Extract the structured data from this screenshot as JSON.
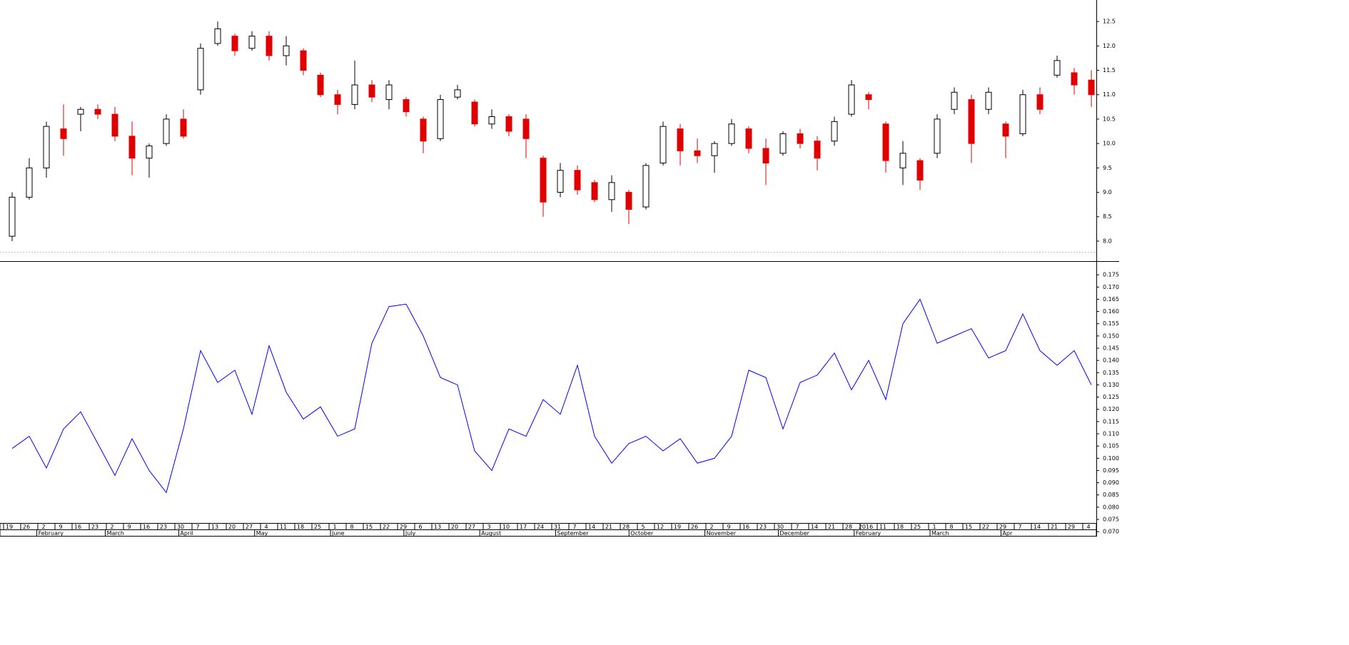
{
  "chart_data": [
    {
      "type": "candlestick",
      "x": [
        "19",
        "26",
        "2",
        "9",
        "16",
        "23",
        "2",
        "9",
        "16",
        "23",
        "30",
        "7",
        "13",
        "20",
        "27",
        "4",
        "11",
        "18",
        "25",
        "1",
        "8",
        "15",
        "22",
        "29",
        "6",
        "13",
        "20",
        "27",
        "3",
        "10",
        "17",
        "24",
        "31",
        "7",
        "14",
        "21",
        "28",
        "5",
        "12",
        "19",
        "26",
        "2",
        "9",
        "16",
        "23",
        "30",
        "7",
        "14",
        "21",
        "28",
        "2016",
        "11",
        "18",
        "25",
        "1",
        "8",
        "15",
        "22",
        "29",
        "7",
        "14",
        "21",
        "29",
        "4"
      ],
      "months": [
        "February",
        "March",
        "April",
        "May",
        "June",
        "July",
        "August",
        "September",
        "October",
        "November",
        "December",
        "February",
        "March",
        "Apr"
      ],
      "open": [
        8.1,
        8.9,
        9.5,
        10.3,
        10.6,
        10.7,
        10.6,
        10.15,
        9.7,
        10.0,
        10.5,
        11.1,
        12.05,
        12.2,
        11.95,
        12.2,
        11.8,
        11.9,
        11.4,
        11.0,
        10.8,
        11.2,
        10.9,
        10.9,
        10.5,
        10.1,
        10.95,
        10.85,
        10.4,
        10.55,
        10.5,
        9.7,
        9.0,
        9.45,
        9.2,
        8.85,
        9.0,
        8.7,
        9.6,
        10.3,
        9.85,
        9.75,
        10.0,
        10.3,
        9.9,
        9.8,
        10.2,
        10.05,
        10.05,
        10.6,
        11.0,
        10.4,
        9.5,
        9.65,
        9.8,
        10.7,
        10.9,
        10.7,
        10.4,
        10.2,
        11.0,
        11.4,
        11.45,
        11.3
      ],
      "high": [
        9.0,
        9.7,
        10.45,
        10.8,
        10.75,
        10.8,
        10.75,
        10.45,
        10.0,
        10.6,
        10.7,
        12.05,
        12.5,
        12.25,
        12.3,
        12.3,
        12.2,
        11.95,
        11.45,
        11.1,
        11.7,
        11.3,
        11.3,
        10.95,
        10.55,
        11.0,
        11.2,
        10.9,
        10.7,
        10.6,
        10.6,
        9.75,
        9.6,
        9.55,
        9.25,
        9.35,
        9.05,
        9.6,
        10.45,
        10.4,
        10.1,
        10.05,
        10.5,
        10.35,
        10.1,
        10.25,
        10.3,
        10.15,
        10.55,
        11.3,
        11.05,
        10.45,
        10.05,
        9.7,
        10.6,
        11.15,
        11.0,
        11.15,
        10.45,
        11.1,
        11.15,
        11.8,
        11.55,
        11.5
      ],
      "low": [
        8.0,
        8.85,
        9.3,
        9.75,
        10.25,
        10.5,
        10.05,
        9.35,
        9.3,
        9.95,
        10.1,
        11.0,
        12.0,
        11.8,
        11.9,
        11.7,
        11.6,
        11.4,
        10.95,
        10.6,
        10.7,
        10.85,
        10.7,
        10.55,
        9.8,
        10.05,
        10.9,
        10.35,
        10.3,
        10.15,
        9.7,
        8.5,
        8.9,
        8.95,
        8.8,
        8.6,
        8.35,
        8.65,
        9.55,
        9.55,
        9.6,
        9.4,
        9.95,
        9.8,
        9.15,
        9.75,
        9.9,
        9.45,
        9.95,
        10.55,
        10.7,
        9.4,
        9.15,
        9.05,
        9.7,
        10.6,
        9.6,
        10.6,
        9.7,
        10.15,
        10.6,
        11.35,
        11.0,
        10.75
      ],
      "close": [
        8.9,
        9.5,
        10.35,
        10.1,
        10.7,
        10.6,
        10.15,
        9.7,
        9.95,
        10.5,
        10.15,
        11.95,
        12.35,
        11.9,
        12.2,
        11.8,
        12.0,
        11.5,
        11.0,
        10.8,
        11.2,
        10.95,
        11.2,
        10.65,
        10.05,
        10.9,
        11.1,
        10.4,
        10.55,
        10.25,
        10.1,
        8.8,
        9.45,
        9.05,
        8.85,
        9.2,
        8.65,
        9.55,
        10.35,
        9.85,
        9.75,
        10.0,
        10.4,
        9.9,
        9.6,
        10.2,
        10.0,
        9.7,
        10.45,
        11.2,
        10.9,
        9.65,
        9.8,
        9.25,
        10.5,
        11.05,
        10.0,
        11.05,
        10.15,
        11.0,
        10.7,
        11.7,
        11.2,
        11.0
      ],
      "up_color": "#000000",
      "down_color": "#e00000",
      "ylim": [
        7.59,
        12.94
      ],
      "yticks": [
        {
          "value": 8,
          "label": "8.0"
        },
        8.5,
        {
          "value": 9,
          "label": "9.0"
        },
        9.5,
        {
          "value": 10,
          "label": "10.0"
        },
        10.5,
        {
          "value": 11,
          "label": "11.0"
        },
        11.5,
        {
          "value": 12,
          "label": "12.0"
        },
        12.5
      ]
    },
    {
      "type": "line",
      "values": [
        0.104,
        0.109,
        0.096,
        0.112,
        0.119,
        0.106,
        0.093,
        0.108,
        0.095,
        0.086,
        0.112,
        0.144,
        0.131,
        0.136,
        0.118,
        0.146,
        0.127,
        0.116,
        0.121,
        0.109,
        0.112,
        0.147,
        0.162,
        0.163,
        0.15,
        0.133,
        0.13,
        0.103,
        0.095,
        0.112,
        0.109,
        0.124,
        0.118,
        0.138,
        0.109,
        0.098,
        0.106,
        0.109,
        0.103,
        0.108,
        0.098,
        0.1,
        0.109,
        0.136,
        0.133,
        0.112,
        0.131,
        0.134,
        0.143,
        0.128,
        0.14,
        0.124,
        0.155,
        0.165,
        0.147,
        0.15,
        0.153,
        0.141,
        0.144,
        0.159,
        0.144,
        0.138,
        0.144,
        0.13
      ],
      "color": "#0000ff",
      "ylim": [
        0.068,
        0.18
      ],
      "yticks": [
        {
          "value": 0.07,
          "label": "0.070"
        },
        0.075,
        {
          "value": 0.08,
          "label": "0.080"
        },
        0.085,
        {
          "value": 0.09,
          "label": "0.090"
        },
        0.095,
        {
          "value": 0.1,
          "label": "0.100"
        },
        0.105,
        {
          "value": 0.11,
          "label": "0.110"
        },
        0.115,
        {
          "value": 0.12,
          "label": "0.120"
        },
        0.125,
        {
          "value": 0.13,
          "label": "0.130"
        },
        0.135,
        {
          "value": 0.14,
          "label": "0.140"
        },
        0.145,
        {
          "value": 0.15,
          "label": "0.150"
        },
        0.155,
        {
          "value": 0.16,
          "label": "0.160"
        },
        0.165,
        {
          "value": 0.17,
          "label": "0.170"
        },
        0.175
      ]
    }
  ]
}
